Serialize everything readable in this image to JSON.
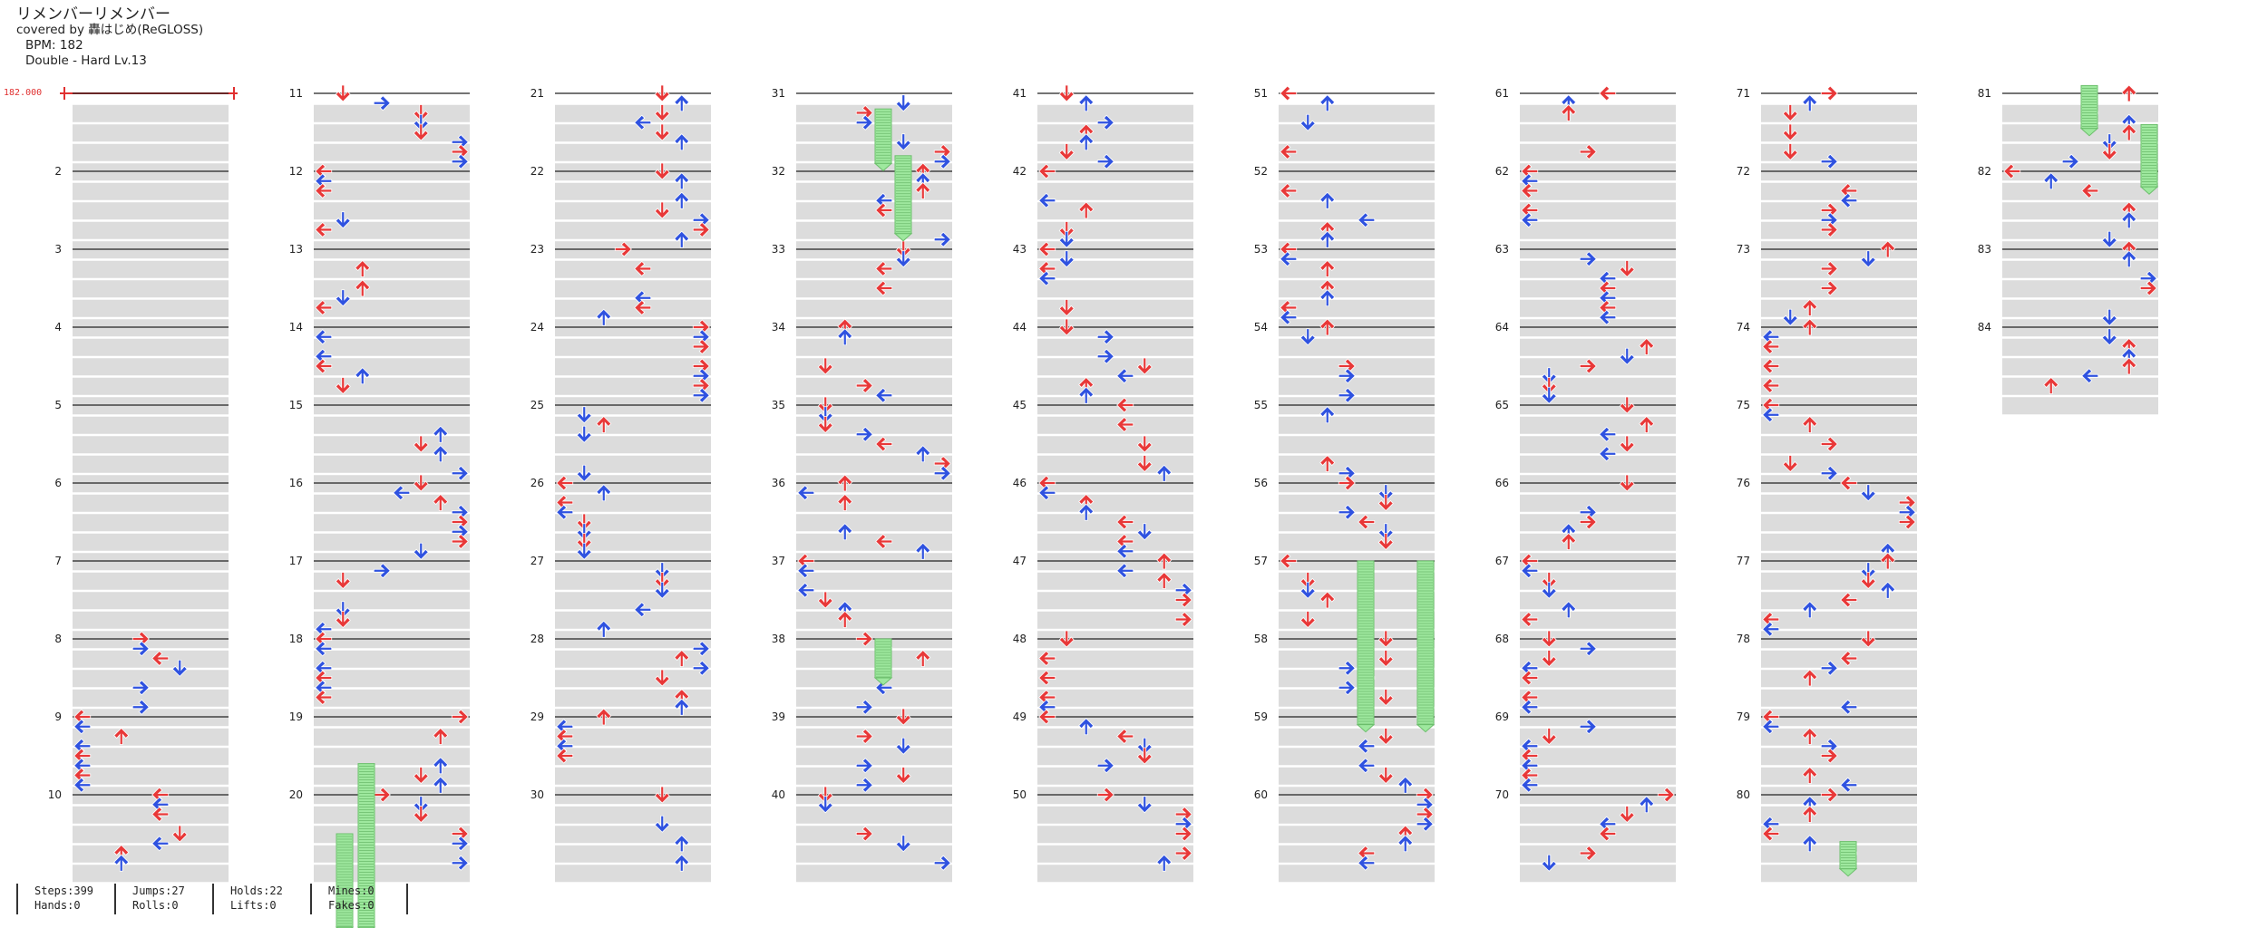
{
  "song": {
    "title": "リメンバーリメンバー",
    "artist_line": "covered by 轟はじめ(ReGLOSS)",
    "bpm_line": "BPM: 182",
    "difficulty_line": "Double - Hard  Lv.13",
    "bpm_marker": "182.000"
  },
  "chart_layout": {
    "measures_per_column": 10,
    "total_measures": 84,
    "labels": [
      "2",
      "3",
      "4",
      "5",
      "6",
      "7",
      "8",
      "9",
      "10",
      "11",
      "12",
      "13",
      "14",
      "15",
      "16",
      "17",
      "18",
      "19",
      "20",
      "21",
      "22",
      "23",
      "24",
      "25",
      "26",
      "27",
      "28",
      "29",
      "30",
      "31",
      "32",
      "33",
      "34",
      "35",
      "36",
      "37",
      "38",
      "39",
      "40",
      "41",
      "42",
      "43",
      "44",
      "45",
      "46",
      "47",
      "48",
      "49",
      "50",
      "51",
      "52",
      "53",
      "54",
      "55",
      "56",
      "57",
      "58",
      "59",
      "60",
      "61",
      "62",
      "63",
      "64",
      "65",
      "66",
      "67",
      "68",
      "69",
      "70",
      "71",
      "72",
      "73",
      "74",
      "75",
      "76",
      "77",
      "78",
      "79",
      "80",
      "81",
      "82",
      "83",
      "84"
    ]
  },
  "colors": {
    "red_arrow": "#e83838",
    "blue_arrow": "#2f52e0",
    "hold": "#9ee89e",
    "row_band": "#dcdcdc",
    "measure_line": "#222222",
    "bpm": "#e03030"
  },
  "stats": {
    "steps": "Steps:399",
    "hands": "Hands:0",
    "jumps": "Jumps:27",
    "rolls": "Rolls:0",
    "holds": "Holds:22",
    "lifts": "Lifts:0",
    "mines": "Mines:0",
    "fakes": "Fakes:0"
  }
}
